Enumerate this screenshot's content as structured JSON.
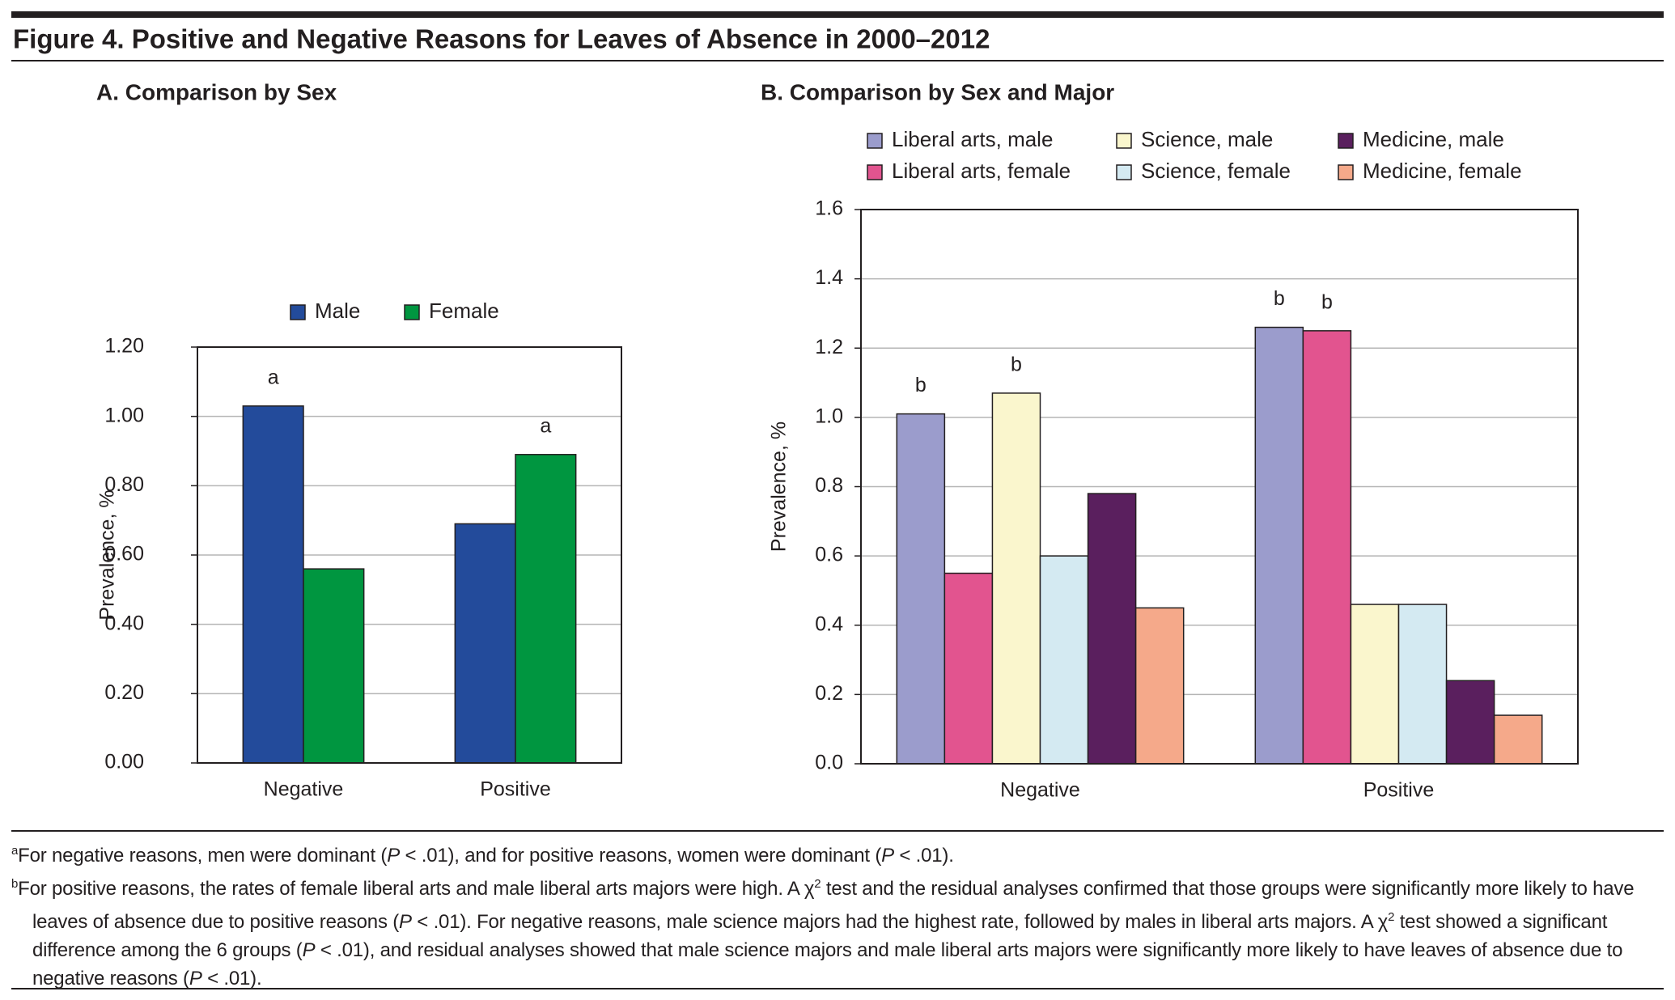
{
  "title": "Figure 4. Positive and Negative Reasons for Leaves of Absence in 2000–2012",
  "chart_data": [
    {
      "type": "bar",
      "title": "A. Comparison by Sex",
      "y_label": "Prevalence, %",
      "categories": [
        "Negative",
        "Positive"
      ],
      "series": [
        {
          "name": "Male",
          "color": "#234b9b",
          "values": [
            1.03,
            0.69
          ],
          "notes": [
            "a",
            null
          ]
        },
        {
          "name": "Female",
          "color": "#009640",
          "values": [
            0.56,
            0.89
          ],
          "notes": [
            null,
            "a"
          ]
        }
      ],
      "ylim": [
        0,
        1.2
      ],
      "yticks": [
        {
          "value": 0,
          "label": "0.00"
        },
        {
          "value": 0.2,
          "label": "0.20"
        },
        {
          "value": 0.4,
          "label": "0.40"
        },
        {
          "value": 0.6,
          "label": "0.60"
        },
        {
          "value": 0.8,
          "label": "0.80"
        },
        {
          "value": 1,
          "label": "1.00"
        },
        {
          "value": 1.2,
          "label": "1.20"
        }
      ],
      "grid": true,
      "legend": "top"
    },
    {
      "type": "bar",
      "title": "B. Comparison by Sex and Major",
      "y_label": "Prevalence, %",
      "categories": [
        "Negative",
        "Positive"
      ],
      "series": [
        {
          "name": "Liberal arts, male",
          "color": "#9b9ccc",
          "values": [
            1.01,
            1.26
          ],
          "notes": [
            "b",
            "b"
          ]
        },
        {
          "name": "Liberal arts, female",
          "color": "#e2548f",
          "values": [
            0.55,
            1.25
          ],
          "notes": [
            null,
            "b"
          ]
        },
        {
          "name": "Science, male",
          "color": "#faf6cd",
          "values": [
            1.07,
            0.46
          ],
          "notes": [
            "b",
            null
          ]
        },
        {
          "name": "Science, female",
          "color": "#d4eaf2",
          "values": [
            0.6,
            0.46
          ],
          "notes": [
            null,
            null
          ]
        },
        {
          "name": "Medicine, male",
          "color": "#5a1f5e",
          "values": [
            0.78,
            0.24
          ],
          "notes": [
            null,
            null
          ]
        },
        {
          "name": "Medicine, female",
          "color": "#f5a98a",
          "values": [
            0.45,
            0.14
          ],
          "notes": [
            null,
            null
          ]
        }
      ],
      "ylim": [
        0,
        1.6
      ],
      "yticks": [
        {
          "value": 0,
          "label": "0.0"
        },
        0.2,
        0.4,
        0.6,
        0.8,
        {
          "value": 1,
          "label": "1.0"
        },
        1.2,
        1.4,
        1.6
      ],
      "grid": true,
      "legend": "top"
    }
  ],
  "footnotes": [
    {
      "marker": "a",
      "runs": [
        {
          "text": "For negative reasons, men were dominant ("
        },
        {
          "text": "P",
          "style": "italic"
        },
        {
          "text": " < .01), and for positive reasons, women were dominant ("
        },
        {
          "text": "P",
          "style": "italic"
        },
        {
          "text": " < .01)."
        }
      ]
    },
    {
      "marker": "b",
      "runs": [
        {
          "text": "For positive reasons, the rates of female liberal arts and male liberal arts majors were high. A χ"
        },
        {
          "text": "2",
          "style": "sup"
        },
        {
          "text": " test and the residual analyses confirmed that those groups were significantly more likely to have leaves of absence due to positive reasons ("
        },
        {
          "text": "P",
          "style": "italic"
        },
        {
          "text": " < .01). For negative reasons, male science majors had the highest rate, followed by males in liberal arts majors. A χ"
        },
        {
          "text": "2",
          "style": "sup"
        },
        {
          "text": " test showed a significant difference among the 6 groups ("
        },
        {
          "text": "P",
          "style": "italic"
        },
        {
          "text": " < .01), and residual analyses showed that male science majors and male liberal arts majors were significantly more likely to have leaves of absence due to negative reasons ("
        },
        {
          "text": "P",
          "style": "italic"
        },
        {
          "text": " < .01)."
        }
      ]
    }
  ]
}
